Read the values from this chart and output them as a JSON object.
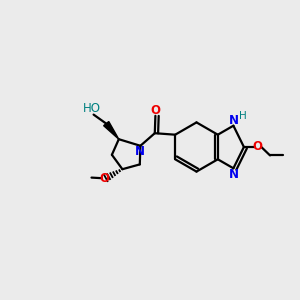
{
  "bg_color": "#ebebeb",
  "bond_color": "#000000",
  "N_color": "#0000ee",
  "O_color": "#ee0000",
  "HO_color": "#008080",
  "figsize": [
    3.0,
    3.0
  ],
  "dpi": 100,
  "lw": 1.6,
  "xlim": [
    0,
    10
  ],
  "ylim": [
    0,
    10
  ]
}
